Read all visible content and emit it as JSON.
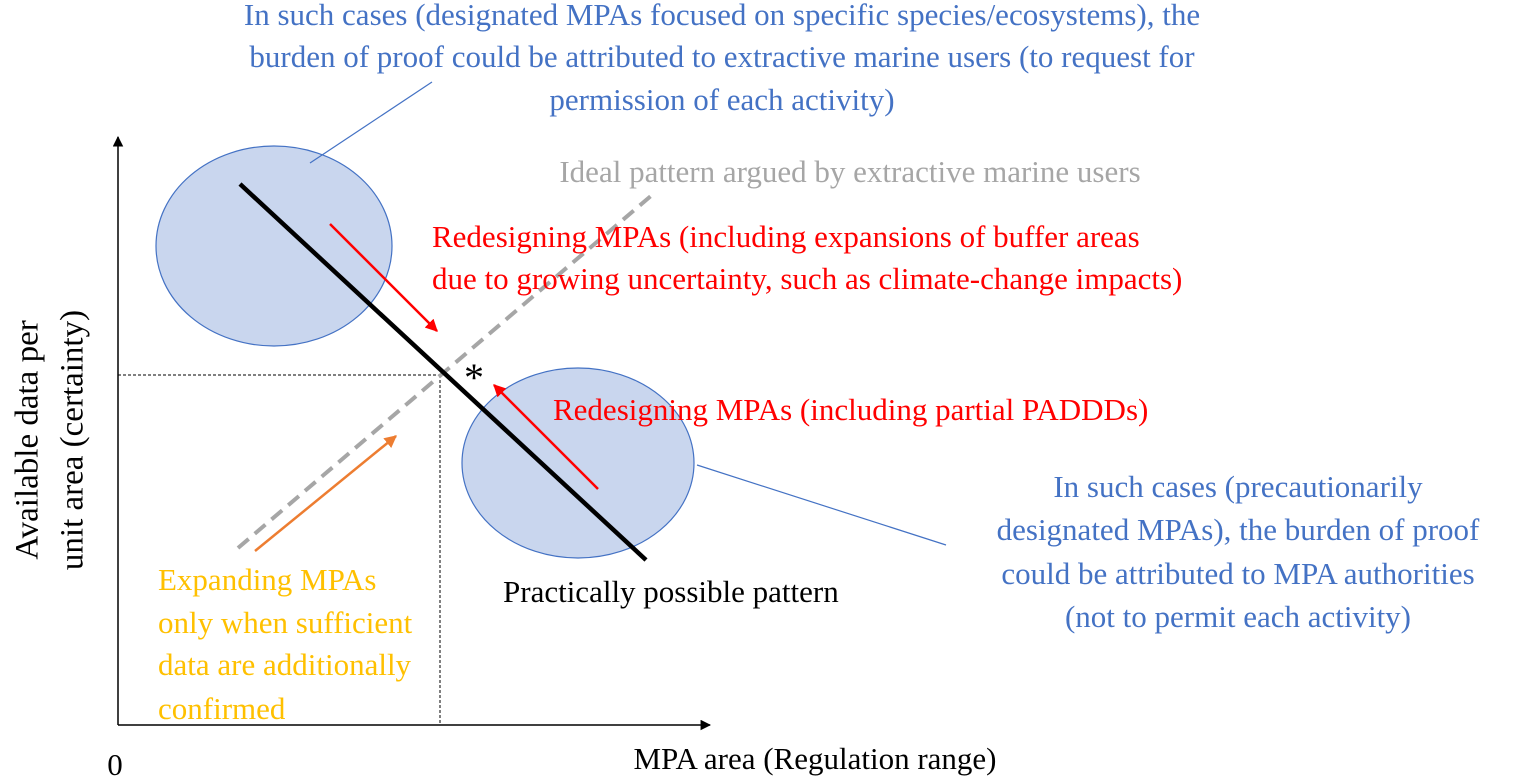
{
  "axes": {
    "origin": "0",
    "x_label": "MPA area (Regulation range)",
    "y_label": [
      "Available data per",
      "unit area (certainty)"
    ]
  },
  "annotations": {
    "top_callout": [
      "In such cases (designated MPAs focused on specific species/ecosystems), the",
      "burden of proof could be attributed to extractive marine users (to request for",
      "permission of each activity)"
    ],
    "ideal_pattern": "Ideal pattern argued by extractive marine users",
    "redesign_expansion": [
      "Redesigning MPAs (including expansions of buffer areas",
      "due to growing uncertainty, such as climate-change impacts)"
    ],
    "redesign_paddd": "Redesigning MPAs (including partial PADDDs)",
    "asterisk": "*",
    "right_callout": [
      "In such cases (precautionarily",
      "designated MPAs), the burden of proof",
      "could be attributed to MPA authorities",
      "(not to permit each activity)"
    ],
    "practical_pattern": "Practically possible pattern",
    "expanding": [
      "Expanding MPAs",
      "only when sufficient",
      "data are additionally",
      "confirmed"
    ]
  }
}
